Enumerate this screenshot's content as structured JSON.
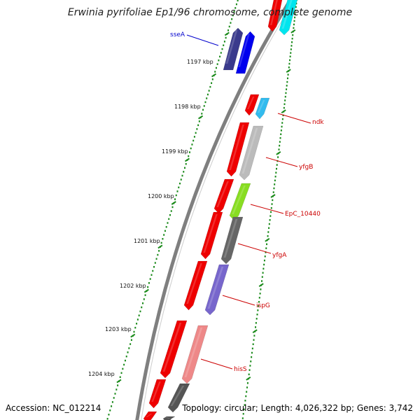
{
  "title": "Erwinia pyrifoliae Ep1/96 chromosome, complete genome",
  "footer": {
    "accession": "Accession: NC_012214",
    "summary": "Topology: circular; Length: 4,026,322 bp; Genes: 3,742"
  },
  "colors": {
    "backbone": "#7f7f7f",
    "tick_track": "#1a8a1a",
    "reverse_label": "#cc0000",
    "forward_label": "#0000cc"
  },
  "tick_labels": [
    "1197 kbp",
    "1198 kbp",
    "1199 kbp",
    "1200 kbp",
    "1201 kbp",
    "1202 kbp",
    "1203 kbp",
    "1204 kbp"
  ],
  "genes": [
    {
      "name": "sseA",
      "strand": "forward",
      "color": "#0000ee"
    },
    {
      "name": "ndk",
      "strand": "reverse",
      "color": "#33bbee"
    },
    {
      "name": "yfgB",
      "strand": "reverse",
      "color": "#bbbbbb"
    },
    {
      "name": "EpC_10440",
      "strand": "reverse",
      "color": "#88dd22"
    },
    {
      "name": "yfgA",
      "strand": "reverse",
      "color": "#666666"
    },
    {
      "name": "ispG",
      "strand": "reverse",
      "color": "#7766cc"
    },
    {
      "name": "hisS",
      "strand": "reverse",
      "color": "#ee8888"
    }
  ]
}
